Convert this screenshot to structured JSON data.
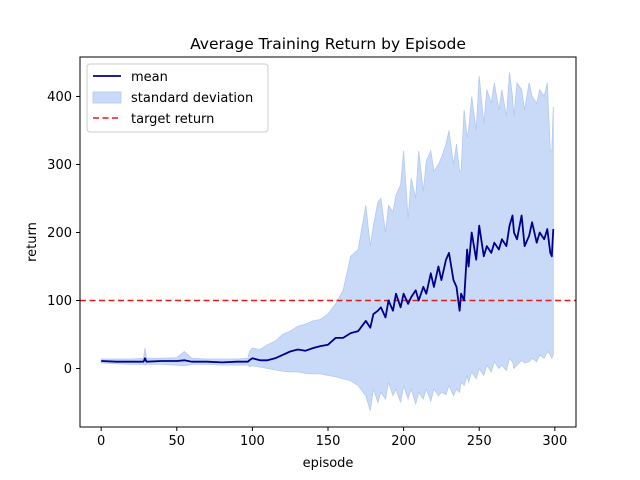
{
  "chart_data": {
    "type": "line",
    "title": "Average Training Return by Episode",
    "xlabel": "episode",
    "ylabel": "return",
    "xlim": [
      -14,
      314
    ],
    "ylim": [
      -86,
      458
    ],
    "xticks": [
      0,
      50,
      100,
      150,
      200,
      250,
      300
    ],
    "yticks": [
      0,
      100,
      200,
      300,
      400
    ],
    "grid": false,
    "legend_position": "top-left",
    "legend": [
      "mean",
      "standard deviation",
      "target return"
    ],
    "target_return": 100,
    "colors": {
      "mean": "#00008b",
      "band_fill": "#c9daf8",
      "band_edge": "#b3c9f0",
      "target": "#e41a1c"
    },
    "series": [
      {
        "name": "mean",
        "x": [
          0,
          10,
          20,
          28,
          29,
          30,
          40,
          50,
          55,
          60,
          70,
          80,
          90,
          97,
          98,
          100,
          105,
          110,
          115,
          120,
          125,
          130,
          135,
          140,
          145,
          150,
          155,
          160,
          165,
          170,
          175,
          178,
          180,
          183,
          185,
          188,
          190,
          193,
          195,
          198,
          200,
          203,
          205,
          208,
          210,
          213,
          215,
          218,
          220,
          223,
          225,
          228,
          230,
          233,
          235,
          237,
          238,
          240,
          242,
          243,
          245,
          248,
          250,
          253,
          255,
          258,
          260,
          263,
          265,
          268,
          270,
          272,
          273,
          275,
          278,
          280,
          283,
          285,
          288,
          290,
          293,
          295,
          297,
          298,
          299
        ],
        "values": [
          11,
          10,
          10,
          10,
          15,
          10,
          11,
          11,
          12,
          10,
          10,
          9,
          10,
          10,
          12,
          15,
          12,
          12,
          15,
          20,
          25,
          28,
          26,
          30,
          33,
          35,
          45,
          45,
          52,
          55,
          70,
          60,
          80,
          85,
          90,
          75,
          100,
          85,
          110,
          90,
          110,
          95,
          105,
          115,
          100,
          120,
          110,
          140,
          120,
          150,
          130,
          160,
          170,
          130,
          120,
          85,
          110,
          100,
          175,
          150,
          200,
          160,
          210,
          165,
          180,
          170,
          185,
          175,
          190,
          180,
          210,
          225,
          200,
          190,
          225,
          180,
          195,
          215,
          185,
          200,
          190,
          205,
          170,
          165,
          205
        ]
      },
      {
        "name": "standard deviation",
        "x": [
          0,
          10,
          20,
          28,
          29,
          30,
          40,
          50,
          55,
          60,
          70,
          80,
          90,
          97,
          98,
          100,
          105,
          110,
          115,
          120,
          125,
          130,
          135,
          140,
          145,
          150,
          155,
          160,
          165,
          170,
          175,
          178,
          180,
          183,
          185,
          188,
          190,
          193,
          195,
          198,
          200,
          203,
          205,
          208,
          210,
          213,
          215,
          218,
          220,
          223,
          225,
          228,
          230,
          233,
          235,
          237,
          238,
          240,
          242,
          243,
          245,
          248,
          250,
          253,
          255,
          258,
          260,
          263,
          265,
          268,
          270,
          272,
          273,
          275,
          278,
          280,
          283,
          285,
          288,
          290,
          293,
          295,
          297,
          298,
          299
        ],
        "lower": [
          8,
          7,
          6,
          6,
          5,
          6,
          6,
          5,
          4,
          6,
          6,
          5,
          5,
          5,
          3,
          4,
          2,
          0,
          -2,
          -4,
          -5,
          -5,
          -7,
          -8,
          -8,
          -10,
          -12,
          -15,
          -18,
          -25,
          -40,
          -62,
          -30,
          -50,
          -35,
          -45,
          -20,
          -40,
          -30,
          -50,
          -25,
          -45,
          -30,
          -52,
          -35,
          -45,
          -30,
          -48,
          -30,
          -40,
          -35,
          -38,
          -25,
          -40,
          -30,
          -35,
          -20,
          -25,
          -10,
          -20,
          -5,
          -15,
          0,
          -10,
          5,
          -5,
          10,
          0,
          5,
          -3,
          15,
          10,
          0,
          5,
          12,
          8,
          10,
          15,
          10,
          20,
          15,
          25,
          20,
          15,
          20
        ],
        "upper": [
          14,
          14,
          14,
          15,
          30,
          15,
          15,
          16,
          25,
          15,
          14,
          14,
          14,
          15,
          25,
          30,
          28,
          35,
          40,
          50,
          55,
          62,
          65,
          70,
          72,
          80,
          95,
          115,
          165,
          175,
          240,
          180,
          210,
          245,
          250,
          200,
          240,
          230,
          255,
          270,
          320,
          220,
          280,
          250,
          320,
          260,
          305,
          320,
          290,
          300,
          310,
          330,
          350,
          300,
          330,
          290,
          290,
          380,
          340,
          350,
          400,
          350,
          430,
          360,
          410,
          390,
          420,
          380,
          410,
          370,
          435,
          400,
          370,
          420,
          410,
          380,
          420,
          400,
          390,
          410,
          400,
          420,
          320,
          320,
          385
        ]
      },
      {
        "name": "target return",
        "values": [
          100
        ]
      }
    ]
  }
}
